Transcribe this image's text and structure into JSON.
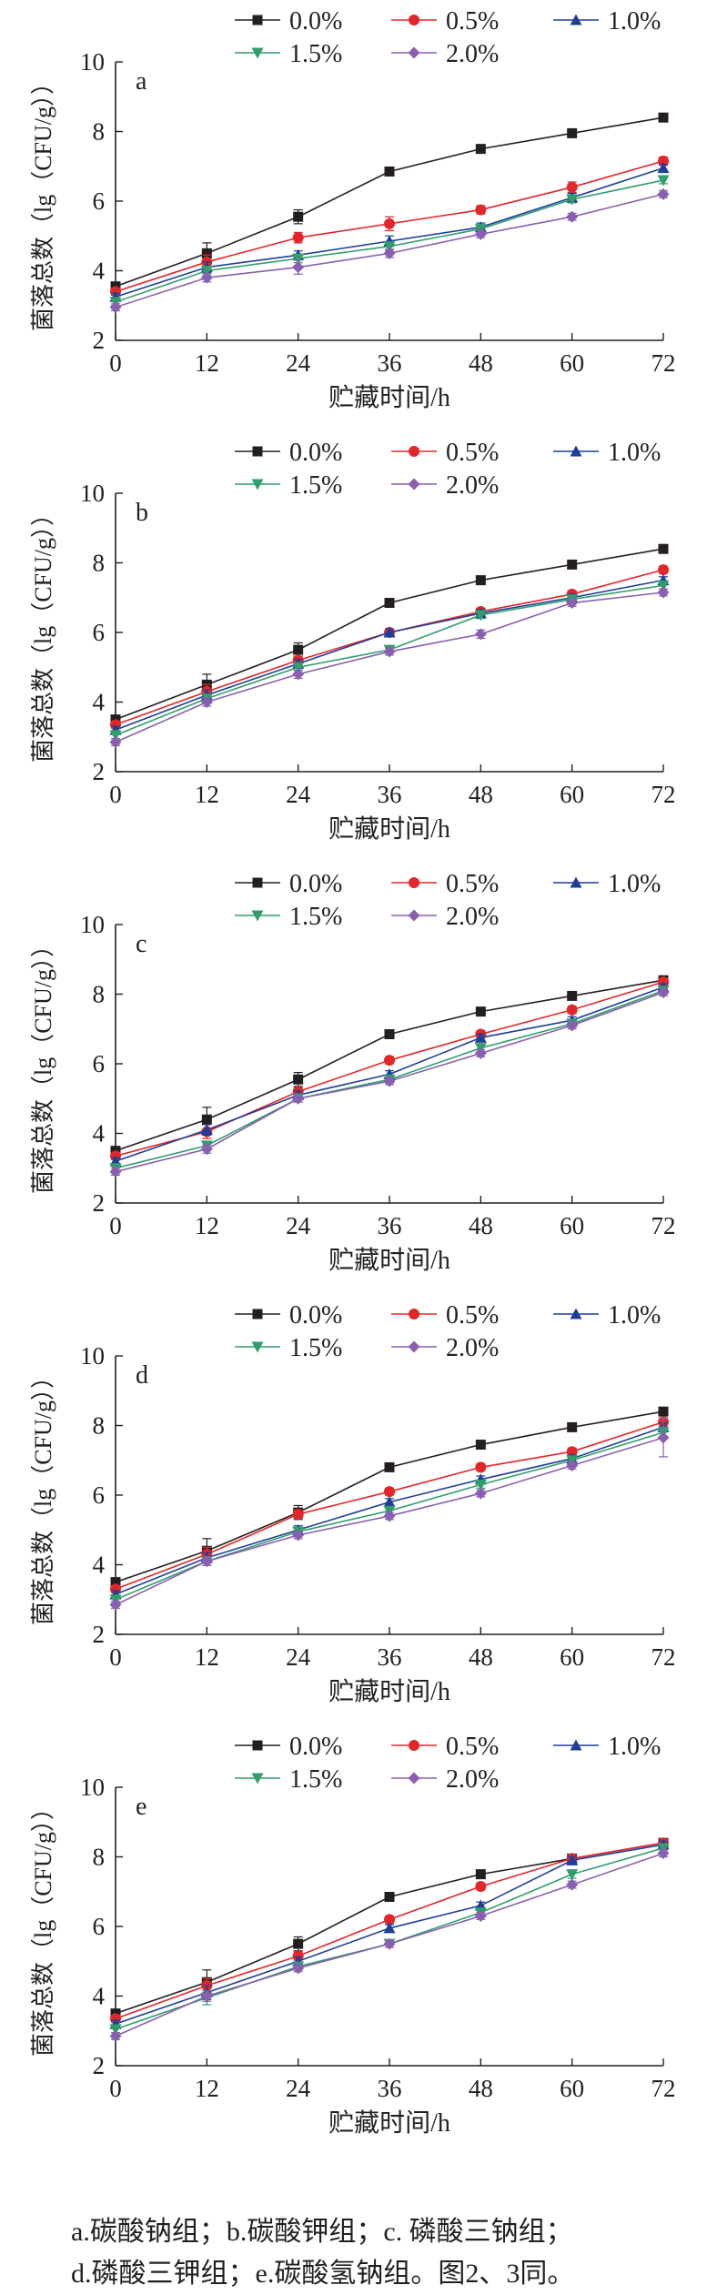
{
  "chart_data": [
    {
      "type": "line",
      "panel_label": "a",
      "xlabel": "贮藏时间/h",
      "ylabel": "菌落总数（lg（CFU/g））",
      "x": [
        0,
        12,
        24,
        36,
        48,
        60,
        72
      ],
      "xlim": [
        0,
        72
      ],
      "ylim": [
        2,
        10
      ],
      "xticks": [
        0,
        12,
        24,
        36,
        48,
        60,
        72
      ],
      "yticks": [
        2,
        4,
        6,
        8,
        10
      ],
      "legend": "top",
      "grid": false,
      "series": [
        {
          "name": "0.0%",
          "color": "#231f20",
          "marker": "square",
          "values": [
            3.55,
            4.5,
            5.55,
            6.85,
            7.5,
            7.95,
            8.4
          ],
          "errors": [
            0.1,
            0.3,
            0.2,
            0.1,
            0.08,
            0.08,
            0.08
          ]
        },
        {
          "name": "0.5%",
          "color": "#e3262a",
          "marker": "circle",
          "values": [
            3.4,
            4.25,
            4.95,
            5.35,
            5.75,
            6.4,
            7.15
          ],
          "errors": [
            0.1,
            0.2,
            0.15,
            0.2,
            0.12,
            0.15,
            0.12
          ]
        },
        {
          "name": "1.0%",
          "color": "#1e3f98",
          "marker": "triangle-up",
          "values": [
            3.25,
            4.1,
            4.45,
            4.85,
            5.25,
            6.1,
            6.95
          ],
          "errors": [
            0.1,
            0.15,
            0.12,
            0.15,
            0.12,
            0.12,
            0.1
          ]
        },
        {
          "name": "1.5%",
          "color": "#2f9e6b",
          "marker": "triangle-down",
          "values": [
            3.1,
            4.0,
            4.35,
            4.7,
            5.2,
            6.05,
            6.6
          ],
          "errors": [
            0.1,
            0.12,
            0.12,
            0.12,
            0.1,
            0.1,
            0.1
          ]
        },
        {
          "name": "2.0%",
          "color": "#8a5fb0",
          "marker": "diamond",
          "values": [
            2.95,
            3.8,
            4.1,
            4.5,
            5.05,
            5.55,
            6.2
          ],
          "errors": [
            0.1,
            0.12,
            0.2,
            0.12,
            0.1,
            0.1,
            0.1
          ]
        }
      ]
    },
    {
      "type": "line",
      "panel_label": "b",
      "xlabel": "贮藏时间/h",
      "ylabel": "菌落总数（lg（CFU/g））",
      "x": [
        0,
        12,
        24,
        36,
        48,
        60,
        72
      ],
      "xlim": [
        0,
        72
      ],
      "ylim": [
        2,
        10
      ],
      "xticks": [
        0,
        12,
        24,
        36,
        48,
        60,
        72
      ],
      "yticks": [
        2,
        4,
        6,
        8,
        10
      ],
      "legend": "top",
      "grid": false,
      "series": [
        {
          "name": "0.0%",
          "color": "#231f20",
          "marker": "square",
          "values": [
            3.5,
            4.5,
            5.5,
            6.85,
            7.5,
            7.95,
            8.4
          ],
          "errors": [
            0.1,
            0.3,
            0.2,
            0.1,
            0.08,
            0.08,
            0.08
          ]
        },
        {
          "name": "0.5%",
          "color": "#e3262a",
          "marker": "circle",
          "values": [
            3.35,
            4.3,
            5.2,
            6.0,
            6.6,
            7.1,
            7.8
          ],
          "errors": [
            0.1,
            0.2,
            0.12,
            0.1,
            0.1,
            0.1,
            0.1
          ]
        },
        {
          "name": "1.0%",
          "color": "#1e3f98",
          "marker": "triangle-up",
          "values": [
            3.2,
            4.2,
            5.1,
            6.0,
            6.55,
            7.0,
            7.5
          ],
          "errors": [
            0.1,
            0.15,
            0.12,
            0.1,
            0.1,
            0.1,
            0.1
          ]
        },
        {
          "name": "1.5%",
          "color": "#2f9e6b",
          "marker": "triangle-down",
          "values": [
            3.05,
            4.1,
            5.0,
            5.5,
            6.5,
            6.95,
            7.35
          ],
          "errors": [
            0.1,
            0.12,
            0.1,
            0.1,
            0.1,
            0.1,
            0.1
          ]
        },
        {
          "name": "2.0%",
          "color": "#8a5fb0",
          "marker": "diamond",
          "values": [
            2.85,
            4.0,
            4.8,
            5.45,
            5.95,
            6.85,
            7.15
          ],
          "errors": [
            0.1,
            0.12,
            0.12,
            0.1,
            0.12,
            0.1,
            0.1
          ]
        }
      ]
    },
    {
      "type": "line",
      "panel_label": "c",
      "xlabel": "贮藏时间/h",
      "ylabel": "菌落总数（lg（CFU/g））",
      "x": [
        0,
        12,
        24,
        36,
        48,
        60,
        72
      ],
      "xlim": [
        0,
        72
      ],
      "ylim": [
        2,
        10
      ],
      "xticks": [
        0,
        12,
        24,
        36,
        48,
        60,
        72
      ],
      "yticks": [
        2,
        4,
        6,
        8,
        10
      ],
      "legend": "top",
      "grid": false,
      "series": [
        {
          "name": "0.0%",
          "color": "#231f20",
          "marker": "square",
          "values": [
            3.5,
            4.4,
            5.55,
            6.85,
            7.5,
            7.95,
            8.4
          ],
          "errors": [
            0.1,
            0.35,
            0.2,
            0.1,
            0.08,
            0.08,
            0.08
          ]
        },
        {
          "name": "0.5%",
          "color": "#e3262a",
          "marker": "circle",
          "values": [
            3.35,
            4.05,
            5.2,
            6.1,
            6.85,
            7.55,
            8.35
          ],
          "errors": [
            0.1,
            0.2,
            0.12,
            0.1,
            0.1,
            0.1,
            0.1
          ]
        },
        {
          "name": "1.0%",
          "color": "#1e3f98",
          "marker": "triangle-up",
          "values": [
            3.2,
            4.1,
            5.1,
            5.7,
            6.75,
            7.25,
            8.2
          ],
          "errors": [
            0.1,
            0.15,
            0.12,
            0.1,
            0.1,
            0.1,
            0.1
          ]
        },
        {
          "name": "1.5%",
          "color": "#2f9e6b",
          "marker": "triangle-down",
          "values": [
            3.0,
            3.65,
            5.0,
            5.55,
            6.45,
            7.15,
            8.1
          ],
          "errors": [
            0.1,
            0.12,
            0.1,
            0.1,
            0.1,
            0.1,
            0.1
          ]
        },
        {
          "name": "2.0%",
          "color": "#8a5fb0",
          "marker": "diamond",
          "values": [
            2.9,
            3.55,
            5.0,
            5.5,
            6.3,
            7.1,
            8.05
          ],
          "errors": [
            0.1,
            0.12,
            0.1,
            0.1,
            0.1,
            0.1,
            0.1
          ]
        }
      ]
    },
    {
      "type": "line",
      "panel_label": "d",
      "xlabel": "贮藏时间/h",
      "ylabel": "菌落总数（lg（CFU/g））",
      "x": [
        0,
        12,
        24,
        36,
        48,
        60,
        72
      ],
      "xlim": [
        0,
        72
      ],
      "ylim": [
        2,
        10
      ],
      "xticks": [
        0,
        12,
        24,
        36,
        48,
        60,
        72
      ],
      "yticks": [
        2,
        4,
        6,
        8,
        10
      ],
      "legend": "top",
      "grid": false,
      "series": [
        {
          "name": "0.0%",
          "color": "#231f20",
          "marker": "square",
          "values": [
            3.5,
            4.4,
            5.5,
            6.8,
            7.45,
            7.95,
            8.4
          ],
          "errors": [
            0.1,
            0.35,
            0.2,
            0.1,
            0.08,
            0.08,
            0.08
          ]
        },
        {
          "name": "0.5%",
          "color": "#e3262a",
          "marker": "circle",
          "values": [
            3.3,
            4.3,
            5.45,
            6.1,
            6.8,
            7.25,
            8.1
          ],
          "errors": [
            0.1,
            0.2,
            0.12,
            0.1,
            0.1,
            0.1,
            0.12
          ]
        },
        {
          "name": "1.0%",
          "color": "#1e3f98",
          "marker": "triangle-up",
          "values": [
            3.15,
            4.2,
            5.0,
            5.8,
            6.45,
            7.05,
            7.95
          ],
          "errors": [
            0.1,
            0.15,
            0.12,
            0.1,
            0.1,
            0.1,
            0.12
          ]
        },
        {
          "name": "1.5%",
          "color": "#2f9e6b",
          "marker": "triangle-down",
          "values": [
            3.0,
            4.1,
            4.95,
            5.55,
            6.3,
            7.0,
            7.8
          ],
          "errors": [
            0.1,
            0.12,
            0.1,
            0.1,
            0.1,
            0.1,
            0.15
          ]
        },
        {
          "name": "2.0%",
          "color": "#8a5fb0",
          "marker": "diamond",
          "values": [
            2.85,
            4.1,
            4.85,
            5.4,
            6.05,
            6.85,
            7.65
          ],
          "errors": [
            0.1,
            0.12,
            0.1,
            0.1,
            0.1,
            0.1,
            0.55
          ]
        }
      ]
    },
    {
      "type": "line",
      "panel_label": "e",
      "xlabel": "贮藏时间/h",
      "ylabel": "菌落总数（lg（CFU/g））",
      "x": [
        0,
        12,
        24,
        36,
        48,
        60,
        72
      ],
      "xlim": [
        0,
        72
      ],
      "ylim": [
        2,
        10
      ],
      "xticks": [
        0,
        12,
        24,
        36,
        48,
        60,
        72
      ],
      "yticks": [
        2,
        4,
        6,
        8,
        10
      ],
      "legend": "top",
      "grid": false,
      "series": [
        {
          "name": "0.0%",
          "color": "#231f20",
          "marker": "square",
          "values": [
            3.5,
            4.4,
            5.5,
            6.85,
            7.5,
            7.95,
            8.4
          ],
          "errors": [
            0.1,
            0.35,
            0.2,
            0.1,
            0.08,
            0.08,
            0.08
          ]
        },
        {
          "name": "0.5%",
          "color": "#e3262a",
          "marker": "circle",
          "values": [
            3.35,
            4.3,
            5.15,
            6.2,
            7.15,
            7.95,
            8.4
          ],
          "errors": [
            0.1,
            0.2,
            0.12,
            0.1,
            0.1,
            0.1,
            0.1
          ]
        },
        {
          "name": "1.0%",
          "color": "#1e3f98",
          "marker": "triangle-up",
          "values": [
            3.2,
            4.1,
            5.0,
            5.95,
            6.6,
            7.9,
            8.35
          ],
          "errors": [
            0.1,
            0.2,
            0.12,
            0.1,
            0.1,
            0.1,
            0.1
          ]
        },
        {
          "name": "1.5%",
          "color": "#2f9e6b",
          "marker": "triangle-down",
          "values": [
            3.05,
            3.95,
            4.85,
            5.5,
            6.4,
            7.5,
            8.25
          ],
          "errors": [
            0.1,
            0.2,
            0.1,
            0.1,
            0.1,
            0.12,
            0.1
          ]
        },
        {
          "name": "2.0%",
          "color": "#8a5fb0",
          "marker": "diamond",
          "values": [
            2.85,
            4.0,
            4.8,
            5.5,
            6.3,
            7.2,
            8.1
          ],
          "errors": [
            0.1,
            0.15,
            0.1,
            0.1,
            0.1,
            0.1,
            0.1
          ]
        }
      ]
    }
  ],
  "caption": {
    "line1": "a.碳酸钠组；b.碳酸钾组；c. 磷酸三钠组；",
    "line2": "d.磷酸三钾组；e.碳酸氢钠组。图2、3同。"
  }
}
